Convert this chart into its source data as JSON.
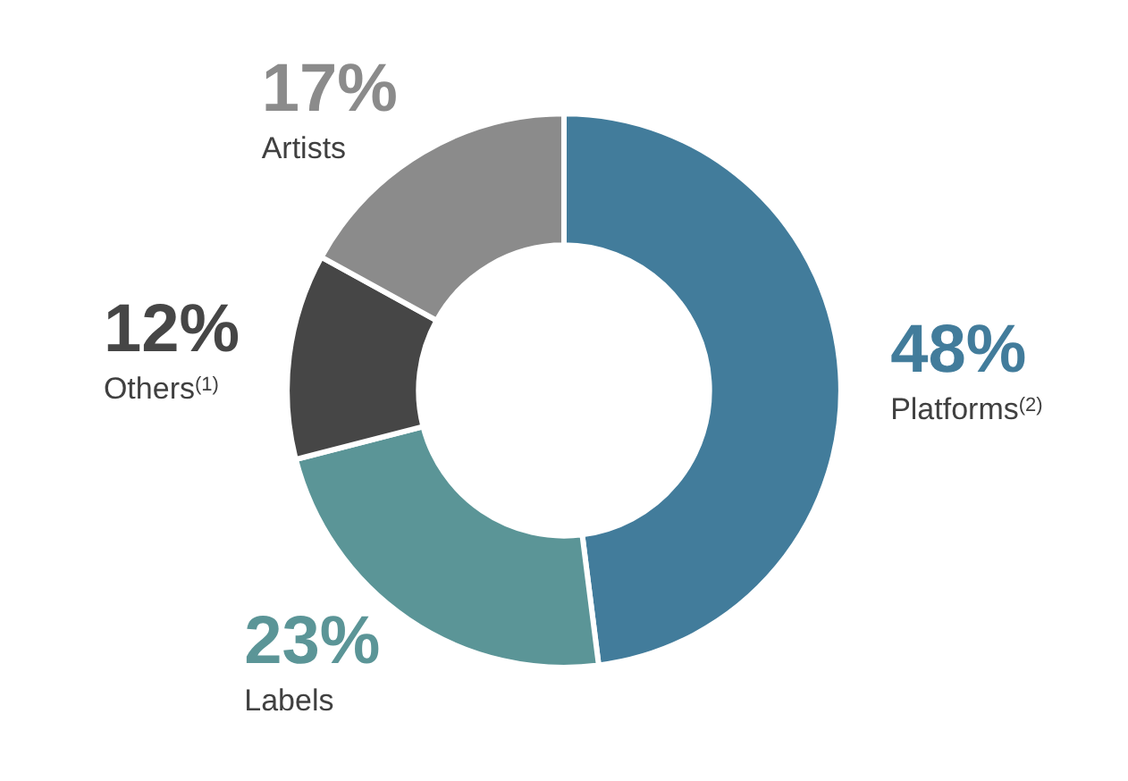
{
  "chart_data": {
    "type": "donut",
    "categories": [
      "Platforms$^{(2)}$",
      "Labels",
      "Others$^{(1)}$",
      "Artists"
    ],
    "values": [
      48,
      23,
      12,
      17
    ],
    "value_labels": [
      "48%",
      "23%",
      "12%",
      "17%"
    ],
    "colors": [
      "#427c9b",
      "#5b9597",
      "#464646",
      "#8b8b8b"
    ],
    "legend": false
  }
}
